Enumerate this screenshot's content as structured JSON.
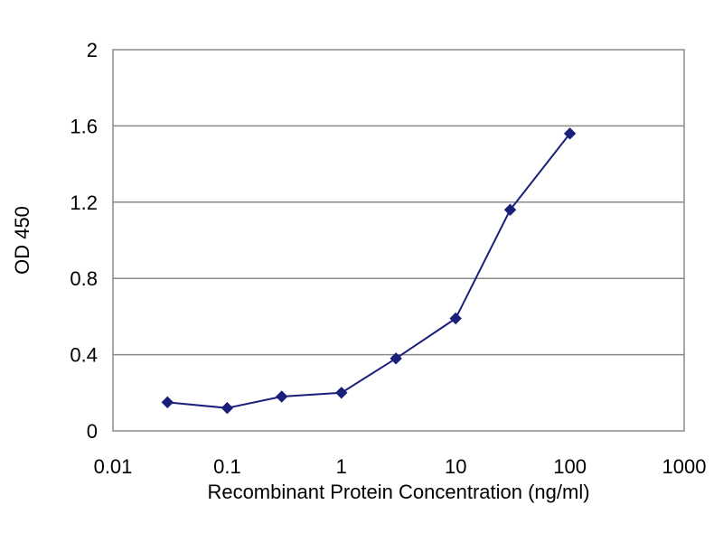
{
  "chart_data": {
    "type": "line",
    "xlabel": "Recombinant Protein Concentration (ng/ml)",
    "ylabel": "OD 450",
    "x_scale": "log",
    "xlim": [
      0.01,
      1000
    ],
    "ylim": [
      0,
      2
    ],
    "x_ticks": [
      0.01,
      0.1,
      1,
      10,
      100,
      1000
    ],
    "x_tick_labels": [
      "0.01",
      "0.1",
      "1",
      "10",
      "100",
      "1000"
    ],
    "y_ticks": [
      0,
      0.4,
      0.8,
      1.2,
      1.6,
      2
    ],
    "y_tick_labels": [
      "0",
      "0.4",
      "0.8",
      "1.2",
      "1.6",
      "2"
    ],
    "grid": "horizontal",
    "legend": "none",
    "series": [
      {
        "x": [
          0.03,
          0.1,
          0.3,
          1,
          3,
          10,
          30,
          100
        ],
        "y": [
          0.15,
          0.12,
          0.18,
          0.2,
          0.38,
          0.59,
          1.16,
          1.56
        ],
        "color": "#1a1f7a",
        "marker": "diamond"
      }
    ]
  }
}
